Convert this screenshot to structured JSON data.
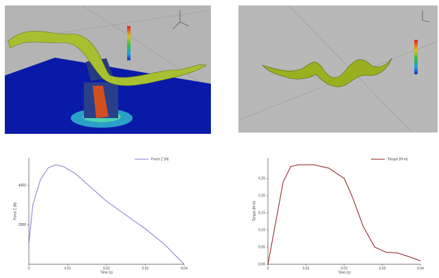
{
  "chart_data": [
    {
      "type": "line",
      "x_label": "Time (s)",
      "y_label": "Force Z (N)",
      "x": [
        0,
        0.001,
        0.003,
        0.005,
        0.007,
        0.009,
        0.012,
        0.016,
        0.02,
        0.025,
        0.03,
        0.035,
        0.04
      ],
      "series": [
        {
          "name": "Force Z (N)",
          "color": "#7b7bd8",
          "values": [
            1000,
            3000,
            4300,
            4900,
            5050,
            4950,
            4600,
            3900,
            3200,
            2500,
            1800,
            1000,
            0
          ]
        }
      ],
      "xlim": [
        0,
        0.04
      ],
      "xticks": [
        0,
        0.01,
        0.02,
        0.03,
        0.04
      ],
      "ylim": [
        0,
        5400
      ],
      "yticks": [
        2000,
        4000
      ],
      "legend": "upper right"
    },
    {
      "type": "line",
      "x_label": "Time (s)",
      "y_label": "Torque (N·m)",
      "x": [
        0,
        0.002,
        0.004,
        0.006,
        0.008,
        0.012,
        0.016,
        0.02,
        0.022,
        0.025,
        0.028,
        0.031,
        0.034,
        0.037,
        0.04
      ],
      "series": [
        {
          "name": "Torque (N·m)",
          "color": "#8b1a1a",
          "values": [
            0,
            0.12,
            0.24,
            0.285,
            0.29,
            0.29,
            0.28,
            0.25,
            0.2,
            0.11,
            0.05,
            0.035,
            0.033,
            0.022,
            0.01
          ]
        }
      ],
      "xlim": [
        0,
        0.04
      ],
      "xticks": [
        0,
        0.01,
        0.02,
        0.03,
        0.04
      ],
      "ylim": [
        0,
        0.31
      ],
      "yticks": [
        {
          "value": 0,
          "label": "0.00"
        },
        {
          "value": 0.05,
          "label": "0.05"
        },
        {
          "value": 0.1,
          "label": "0.10"
        },
        {
          "value": 0.15,
          "label": "0.15"
        },
        {
          "value": 0.2,
          "label": "0.20"
        },
        {
          "value": 0.25,
          "label": "0.25"
        }
      ],
      "legend": "upper right"
    }
  ]
}
